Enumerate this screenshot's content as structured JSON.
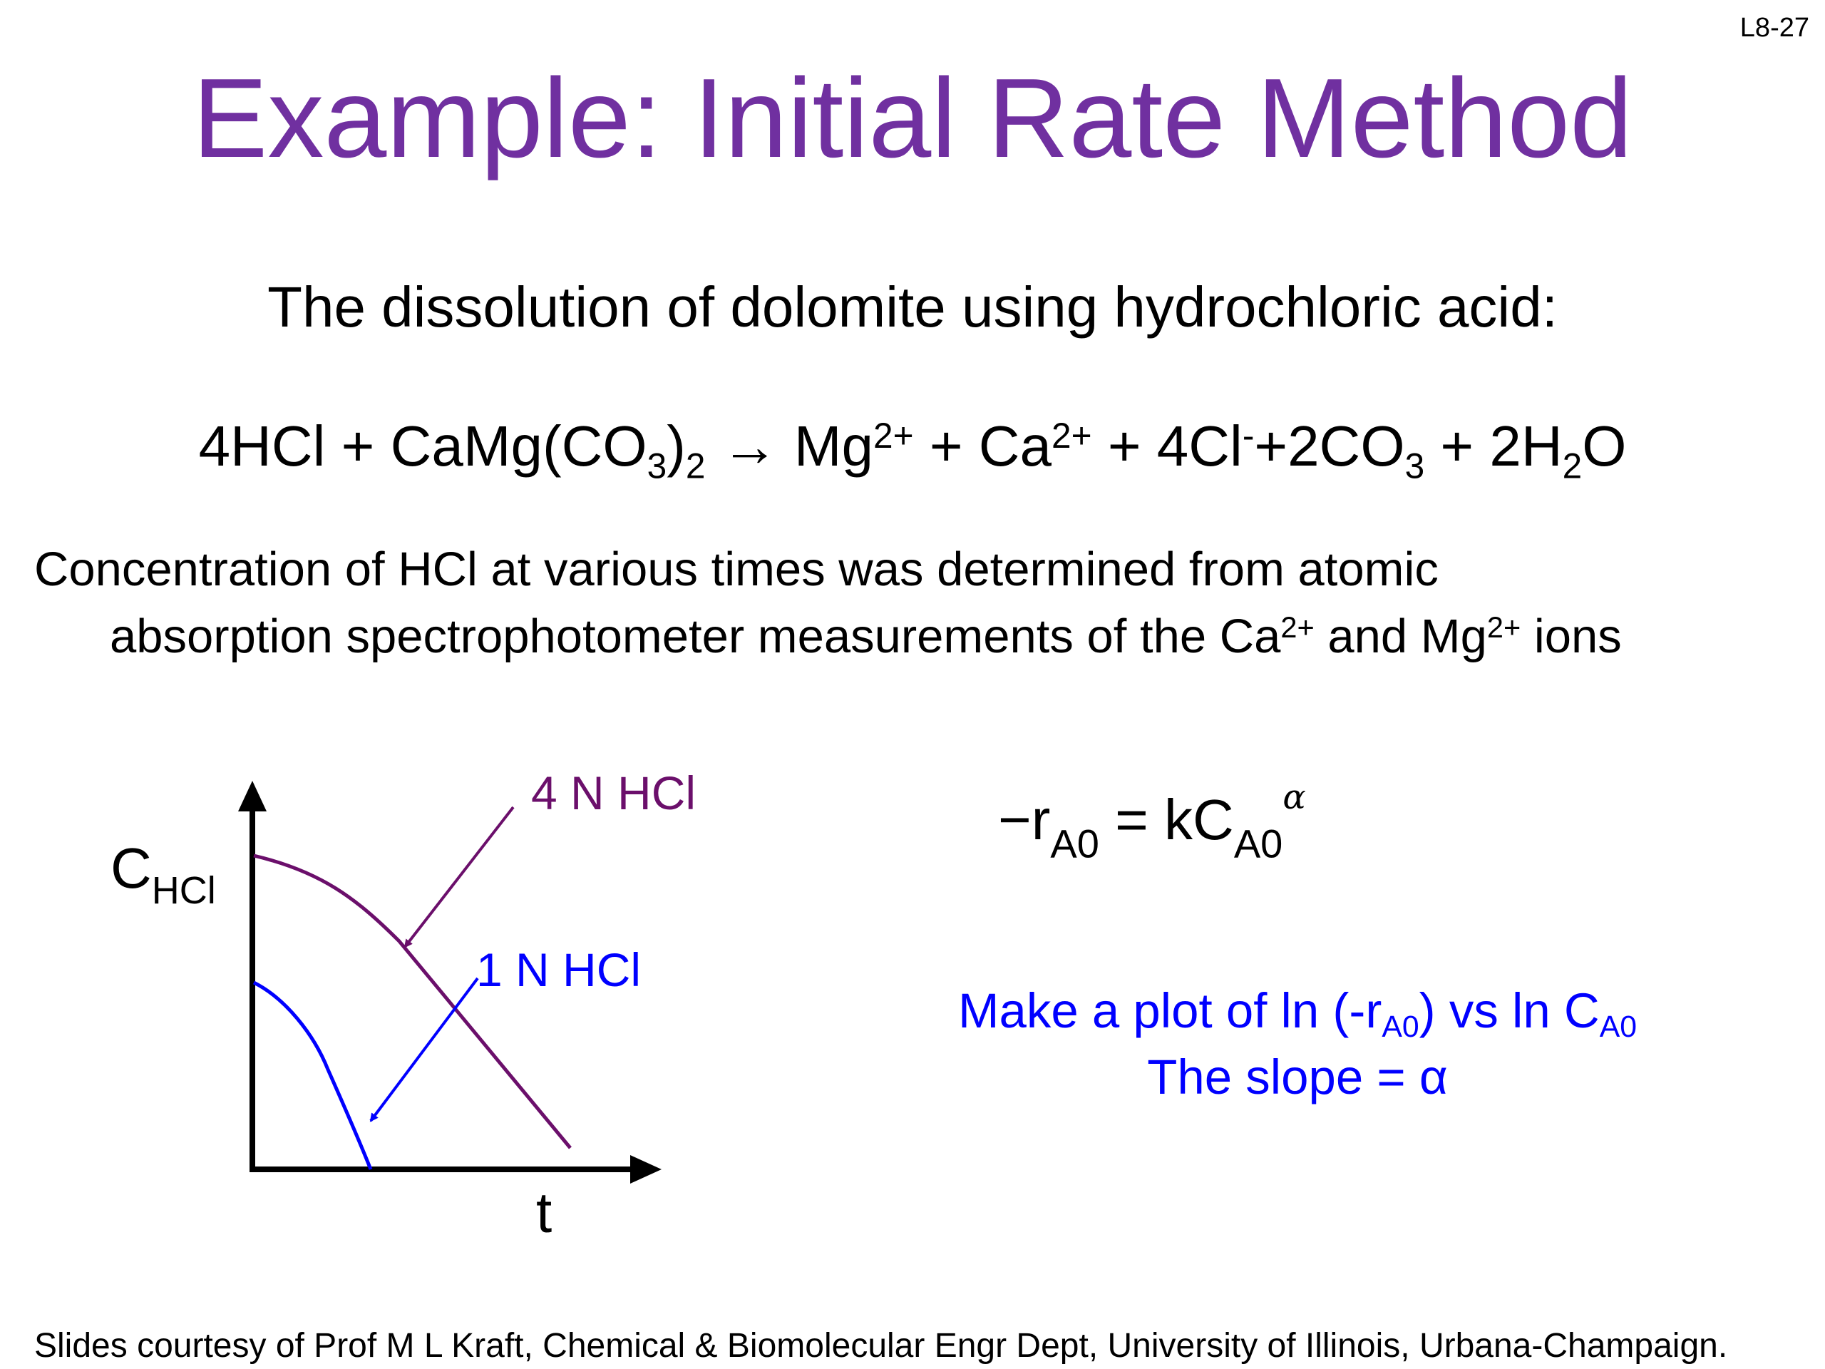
{
  "slide_number": "L8-27",
  "title": "Example: Initial Rate Method",
  "intro": "The dissolution of dolomite using hydrochloric acid:",
  "equation": {
    "reactant_1": "4HCl",
    "plus": "+",
    "reactant_2_base": "CaMg(CO",
    "sub_3": "3",
    "paren_close": ")",
    "sub_2": "2",
    "arrow": "→",
    "product_mg": "Mg",
    "charge_2plus": "2+",
    "product_ca": "Ca",
    "product_cl": "4Cl",
    "charge_minus": "-",
    "product_co3_base": "+2CO",
    "product_h2o_prefix": "2H",
    "product_h2o_suffix": "O"
  },
  "paragraph": {
    "line1": "Concentration of HCl at various times was determined from atomic",
    "line2_start": "absorption spectrophotometer measurements of the Ca",
    "charge": "2+",
    "line2_middle": " and Mg",
    "line2_end": " ions"
  },
  "graph": {
    "y_label_main": "C",
    "y_label_sub": "HCl",
    "x_label": "t",
    "label_4n": "4 N HCl",
    "label_1n": "1 N HCl",
    "color_4n": "#6b0f6b",
    "color_1n": "#0000ff"
  },
  "rate_law": {
    "lhs": "−r",
    "sub_a0": "A0",
    "equals_k": " = kC",
    "exponent": "α"
  },
  "note": {
    "line1_start": "Make a plot of ln (-r",
    "sub": "A0",
    "line1_middle": ") vs ln C",
    "line2": "The slope = α"
  },
  "footer": "Slides courtesy of Prof M L Kraft, Chemical & Biomolecular Engr Dept, University of Illinois, Urbana-Champaign.",
  "colors": {
    "title": "#7030a0",
    "note": "#0000ff"
  }
}
